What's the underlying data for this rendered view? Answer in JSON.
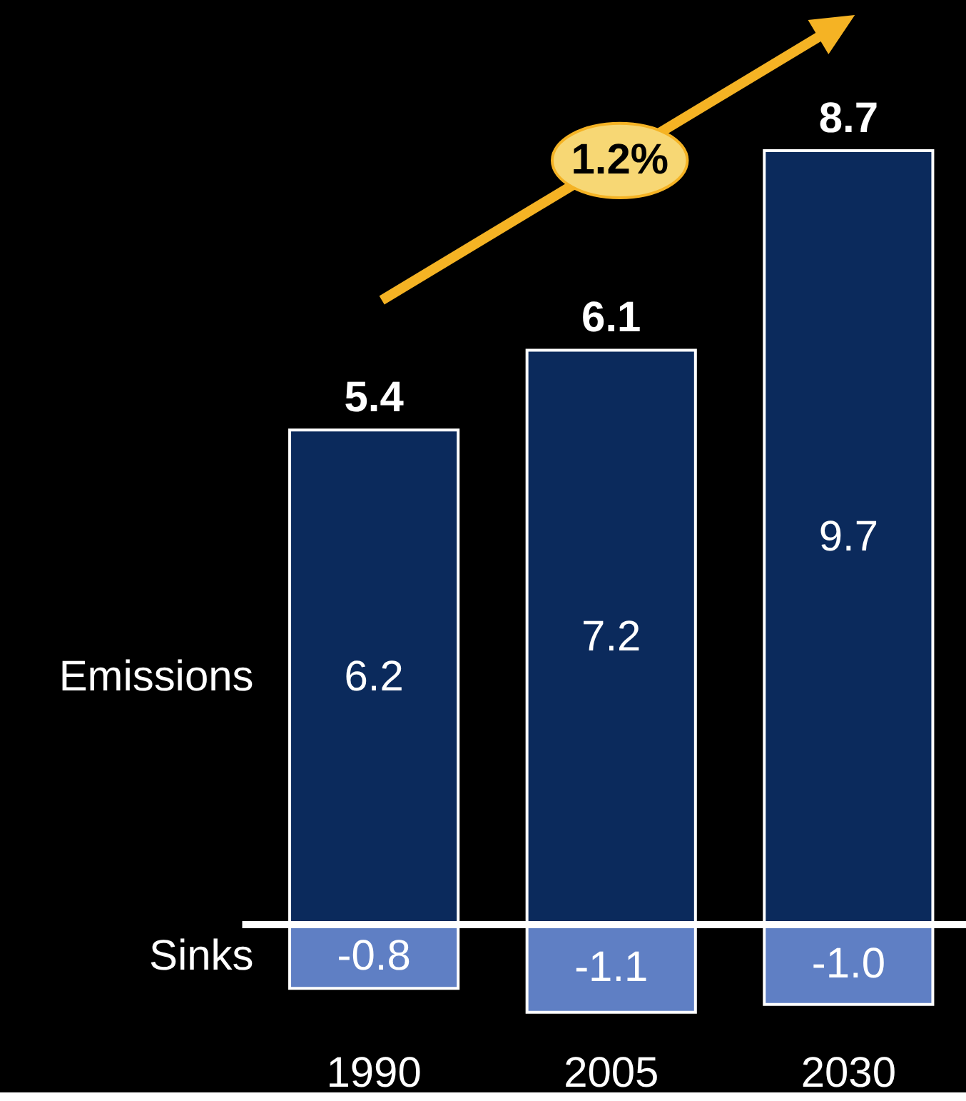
{
  "chart_data": {
    "type": "bar",
    "stacked": true,
    "categories": [
      "1990",
      "2005",
      "2030"
    ],
    "series": [
      {
        "name": "Emissions",
        "color": "#0b2a5c",
        "values": [
          6.2,
          7.2,
          9.7
        ]
      },
      {
        "name": "Sinks",
        "color": "#5f7fc4",
        "values": [
          -0.8,
          -1.1,
          -1.0
        ],
        "value_labels": [
          "-0.8",
          "-1.1",
          "-1.0"
        ]
      }
    ],
    "data_labels": true,
    "totals": [
      "5.4",
      "6.1",
      "8.7"
    ],
    "annotations": [
      "1.2%"
    ],
    "ref_lines": [
      {
        "axis": "y",
        "value": 0,
        "color": "#ffffff"
      }
    ]
  }
}
